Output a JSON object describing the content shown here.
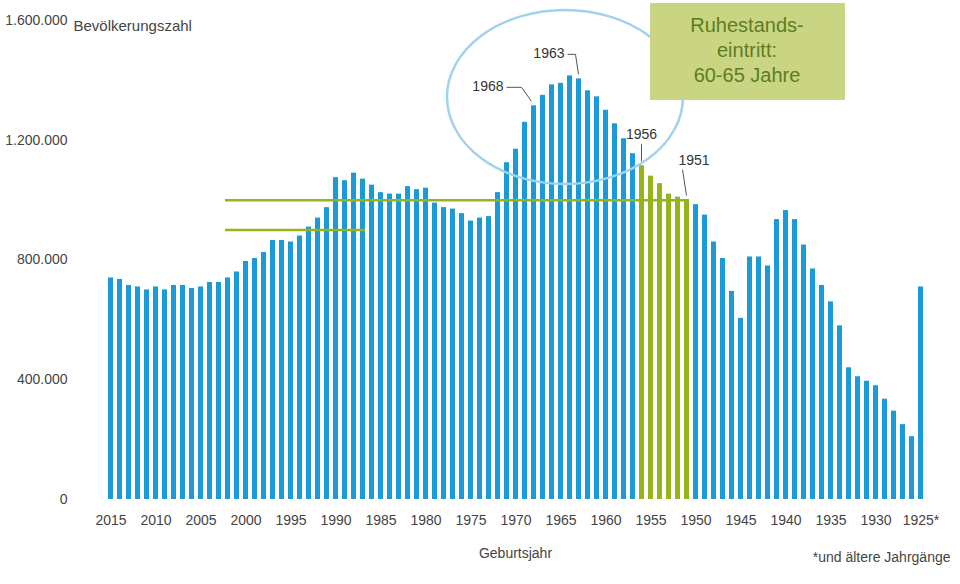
{
  "chart_data": {
    "type": "bar",
    "y_label": "Bevölkerungszahl",
    "x_label": "Geburtsjahr",
    "footnote": "*und ältere Jahrgänge",
    "x": [
      2015,
      2014,
      2013,
      2012,
      2011,
      2010,
      2009,
      2008,
      2007,
      2006,
      2005,
      2004,
      2003,
      2002,
      2001,
      2000,
      1999,
      1998,
      1997,
      1996,
      1995,
      1994,
      1993,
      1992,
      1991,
      1990,
      1989,
      1988,
      1987,
      1986,
      1985,
      1984,
      1983,
      1982,
      1981,
      1980,
      1979,
      1978,
      1977,
      1976,
      1975,
      1974,
      1973,
      1972,
      1971,
      1970,
      1969,
      1968,
      1967,
      1966,
      1965,
      1964,
      1963,
      1962,
      1961,
      1960,
      1959,
      1958,
      1957,
      1956,
      1955,
      1954,
      1953,
      1952,
      1951,
      1950,
      1949,
      1948,
      1947,
      1946,
      1945,
      1944,
      1943,
      1942,
      1941,
      1940,
      1939,
      1938,
      1937,
      1936,
      1935,
      1934,
      1933,
      1932,
      1931,
      1930,
      1929,
      1928,
      1927,
      1926,
      1925
    ],
    "values": [
      740000,
      735000,
      715000,
      710000,
      700000,
      710000,
      700000,
      715000,
      715000,
      705000,
      710000,
      725000,
      725000,
      740000,
      760000,
      795000,
      805000,
      825000,
      865000,
      865000,
      860000,
      880000,
      910000,
      940000,
      975000,
      1075000,
      1065000,
      1090000,
      1070000,
      1050000,
      1025000,
      1020000,
      1020000,
      1045000,
      1035000,
      1040000,
      990000,
      975000,
      970000,
      955000,
      930000,
      940000,
      945000,
      1025000,
      1125000,
      1170000,
      1260000,
      1315000,
      1350000,
      1385000,
      1390000,
      1415000,
      1405000,
      1365000,
      1345000,
      1300000,
      1255000,
      1205000,
      1155000,
      1115000,
      1080000,
      1055000,
      1020000,
      1010000,
      1000000,
      985000,
      950000,
      860000,
      805000,
      695000,
      605000,
      810000,
      810000,
      780000,
      935000,
      965000,
      935000,
      850000,
      770000,
      715000,
      660000,
      580000,
      440000,
      410000,
      395000,
      380000,
      335000,
      295000,
      250000,
      210000,
      710000
    ],
    "colors": [
      "#1a9bd7",
      "#1a9bd7",
      "#1a9bd7",
      "#1a9bd7",
      "#1a9bd7",
      "#1a9bd7",
      "#1a9bd7",
      "#1a9bd7",
      "#1a9bd7",
      "#1a9bd7",
      "#1a9bd7",
      "#1a9bd7",
      "#1a9bd7",
      "#1a9bd7",
      "#1a9bd7",
      "#1a9bd7",
      "#1a9bd7",
      "#1a9bd7",
      "#1a9bd7",
      "#1a9bd7",
      "#1a9bd7",
      "#1a9bd7",
      "#1a9bd7",
      "#1a9bd7",
      "#1a9bd7",
      "#1a9bd7",
      "#1a9bd7",
      "#1a9bd7",
      "#1a9bd7",
      "#1a9bd7",
      "#1a9bd7",
      "#1a9bd7",
      "#1a9bd7",
      "#1a9bd7",
      "#1a9bd7",
      "#1a9bd7",
      "#1a9bd7",
      "#1a9bd7",
      "#1a9bd7",
      "#1a9bd7",
      "#1a9bd7",
      "#1a9bd7",
      "#1a9bd7",
      "#1a9bd7",
      "#1a9bd7",
      "#1a9bd7",
      "#1a9bd7",
      "#1a9bd7",
      "#1a9bd7",
      "#1a9bd7",
      "#1a9bd7",
      "#1a9bd7",
      "#1a9bd7",
      "#1a9bd7",
      "#1a9bd7",
      "#1a9bd7",
      "#1a9bd7",
      "#1a9bd7",
      "#1a9bd7",
      "#95b31a",
      "#95b31a",
      "#95b31a",
      "#95b31a",
      "#95b31a",
      "#95b31a",
      "#1a9bd7",
      "#1a9bd7",
      "#1a9bd7",
      "#1a9bd7",
      "#1a9bd7",
      "#1a9bd7",
      "#1a9bd7",
      "#1a9bd7",
      "#1a9bd7",
      "#1a9bd7",
      "#1a9bd7",
      "#1a9bd7",
      "#1a9bd7",
      "#1a9bd7",
      "#1a9bd7",
      "#1a9bd7",
      "#1a9bd7",
      "#1a9bd7",
      "#1a9bd7",
      "#1a9bd7",
      "#1a9bd7",
      "#1a9bd7",
      "#1a9bd7",
      "#1a9bd7",
      "#1a9bd7",
      "#1a9bd7"
    ],
    "xticks": [
      2015,
      2010,
      2005,
      2000,
      1995,
      1990,
      1985,
      1980,
      1975,
      1970,
      1965,
      1960,
      1955,
      1950,
      1945,
      1940,
      1935,
      1930,
      {
        "value": 1925,
        "label": "1925*"
      }
    ],
    "ylim": [
      0,
      1600000
    ],
    "yticks": [
      0,
      {
        "value": 400000,
        "label": "400.000"
      },
      {
        "value": 800000,
        "label": "800.000"
      },
      {
        "value": 1200000,
        "label": "1.200.000"
      },
      {
        "value": 1600000,
        "label": "1.600.000"
      }
    ],
    "grid": false,
    "annotations": [
      {
        "text": "1968",
        "x": 1968
      },
      {
        "text": "1963",
        "x": 1963
      },
      {
        "text": "1956",
        "x": 1956
      },
      {
        "text": "1951",
        "x": 1951
      }
    ],
    "text_box": [
      "Ruhestands-",
      "eintritt:",
      "60-65 Jahre"
    ],
    "reference_lines": [
      {
        "y": 1000000,
        "x1": 2002,
        "x2": 1951,
        "color": "#95b31a"
      },
      {
        "y": 900000,
        "x1": 2002,
        "x2": 1987,
        "color": "#95b31a"
      }
    ]
  }
}
